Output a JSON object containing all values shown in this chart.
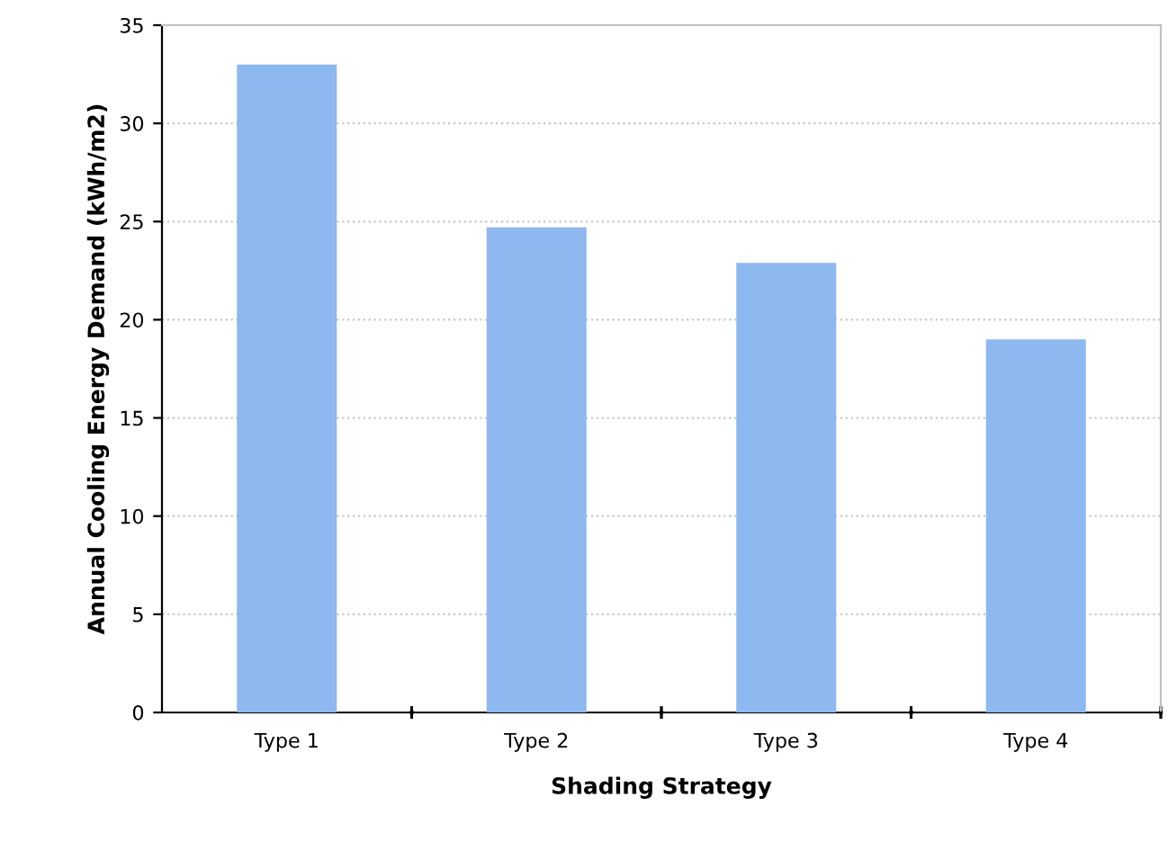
{
  "chart_data": {
    "type": "bar",
    "categories": [
      "Type 1",
      "Type 2",
      "Type 3",
      "Type 4"
    ],
    "values": [
      33.0,
      24.7,
      22.9,
      19.0
    ],
    "color": "#8db8f0",
    "xlabel": "Shading Strategy",
    "ylabel": "Annual Cooling Energy Demand (kWh/m2)",
    "ylim": [
      0,
      35
    ],
    "yticks": [
      0,
      5,
      10,
      15,
      20,
      25,
      30,
      35
    ],
    "grid": "y"
  }
}
